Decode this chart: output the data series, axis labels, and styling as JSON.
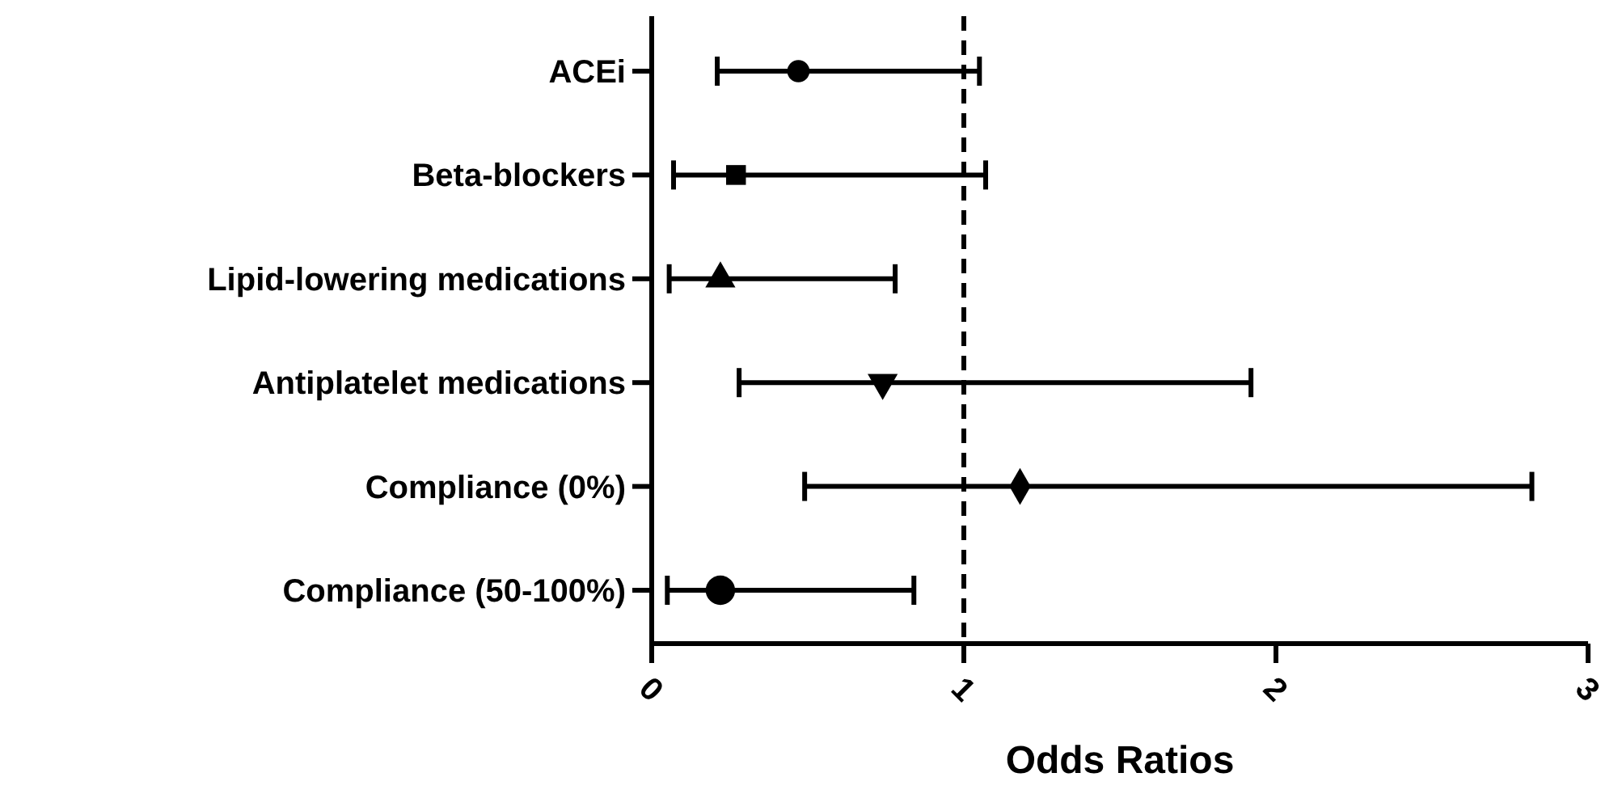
{
  "chart_data": {
    "type": "scatter",
    "orientation": "horizontal",
    "xlabel": "Odds Ratios",
    "categories": [
      "ACEi",
      "Beta-blockers",
      "Lipid-lowering medications",
      "Antiplatelet medications",
      "Compliance (0%)",
      "Compliance (50-100%)"
    ],
    "series": [
      {
        "color": "#000000",
        "marker": "circle",
        "values": [
          0.47,
          null,
          null,
          null,
          null,
          null
        ],
        "errors": [
          [
            0.21,
            1.05
          ],
          null,
          null,
          null,
          null,
          null
        ]
      },
      {
        "color": "#000000",
        "marker": "square",
        "values": [
          null,
          0.27,
          null,
          null,
          null,
          null
        ],
        "errors": [
          null,
          [
            0.07,
            1.07
          ],
          null,
          null,
          null,
          null
        ]
      },
      {
        "color": "#000000",
        "marker": "triangle",
        "values": [
          null,
          null,
          0.22,
          null,
          null,
          null
        ],
        "errors": [
          null,
          null,
          [
            0.056,
            0.78
          ],
          null,
          null,
          null
        ]
      },
      {
        "color": "#000000",
        "marker": "triangle-down",
        "values": [
          null,
          null,
          null,
          0.74,
          null,
          null
        ],
        "errors": [
          null,
          null,
          null,
          [
            0.28,
            1.92
          ],
          null,
          null
        ]
      },
      {
        "color": "#000000",
        "marker": "diamond",
        "values": [
          null,
          null,
          null,
          null,
          1.18,
          null
        ],
        "errors": [
          null,
          null,
          null,
          null,
          [
            0.49,
            2.82
          ],
          null
        ]
      },
      {
        "color": "#000000",
        "marker": "circle",
        "values": [
          null,
          null,
          null,
          null,
          null,
          0.22
        ],
        "errors": [
          null,
          null,
          null,
          null,
          null,
          [
            0.05,
            0.84
          ]
        ]
      }
    ],
    "xlim": [
      0,
      3
    ],
    "xticks": [
      0,
      1,
      2,
      3
    ],
    "grid": false,
    "ref_lines": [
      {
        "axis": "x",
        "value": 1,
        "line_style": "dashed",
        "color": "#000000"
      }
    ]
  }
}
